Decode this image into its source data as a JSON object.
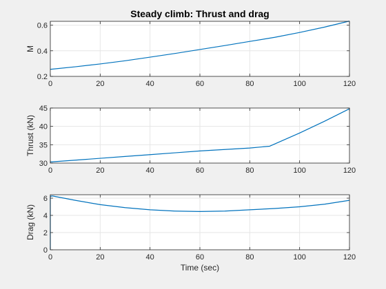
{
  "figure": {
    "background": "#f0f0f0",
    "line_color": "#0072bd"
  },
  "chart_data": [
    {
      "type": "line",
      "title": "Steady climb: Thrust and drag",
      "xlabel": "",
      "ylabel": "M",
      "xlim": [
        0,
        120
      ],
      "ylim": [
        0.2,
        0.63
      ],
      "xticks": [
        0,
        20,
        40,
        60,
        80,
        100,
        120
      ],
      "yticks": [
        0.2,
        0.4,
        0.6
      ],
      "ytick_labels": [
        "0.2",
        "0.4",
        "0.6"
      ],
      "grid": true,
      "series": [
        {
          "x": [
            0,
            10,
            20,
            30,
            40,
            50,
            60,
            70,
            80,
            90,
            100,
            110,
            120
          ],
          "y": [
            0.255,
            0.275,
            0.297,
            0.322,
            0.35,
            0.379,
            0.41,
            0.441,
            0.473,
            0.505,
            0.543,
            0.585,
            0.632
          ]
        }
      ]
    },
    {
      "type": "line",
      "title": "",
      "xlabel": "",
      "ylabel": "Thrust (kN)",
      "xlim": [
        0,
        120
      ],
      "ylim": [
        30,
        45
      ],
      "xticks": [
        0,
        20,
        40,
        60,
        80,
        100,
        120
      ],
      "yticks": [
        30,
        35,
        40,
        45
      ],
      "ytick_labels": [
        "30",
        "35",
        "40",
        "45"
      ],
      "grid": true,
      "series": [
        {
          "x": [
            0,
            10,
            20,
            30,
            40,
            50,
            60,
            70,
            80,
            88,
            100,
            110,
            120
          ],
          "y": [
            30.3,
            30.8,
            31.3,
            31.8,
            32.3,
            32.8,
            33.3,
            33.7,
            34.1,
            34.6,
            38.2,
            41.4,
            44.8
          ]
        }
      ]
    },
    {
      "type": "line",
      "title": "",
      "xlabel": "Time (sec)",
      "ylabel": "Drag (kN)",
      "xlim": [
        0,
        120
      ],
      "ylim": [
        0,
        6.4
      ],
      "xticks": [
        0,
        20,
        40,
        60,
        80,
        100,
        120
      ],
      "yticks": [
        0,
        2,
        4,
        6
      ],
      "ytick_labels": [
        "0",
        "2",
        "4",
        "6"
      ],
      "grid": true,
      "series": [
        {
          "x": [
            0,
            0,
            0.5,
            1,
            10,
            20,
            30,
            40,
            50,
            60,
            70,
            80,
            90,
            100,
            110,
            120
          ],
          "y": [
            0,
            6.2,
            6.25,
            6.25,
            5.75,
            5.25,
            4.9,
            4.65,
            4.5,
            4.45,
            4.5,
            4.65,
            4.8,
            5.0,
            5.3,
            5.75
          ]
        }
      ]
    }
  ]
}
